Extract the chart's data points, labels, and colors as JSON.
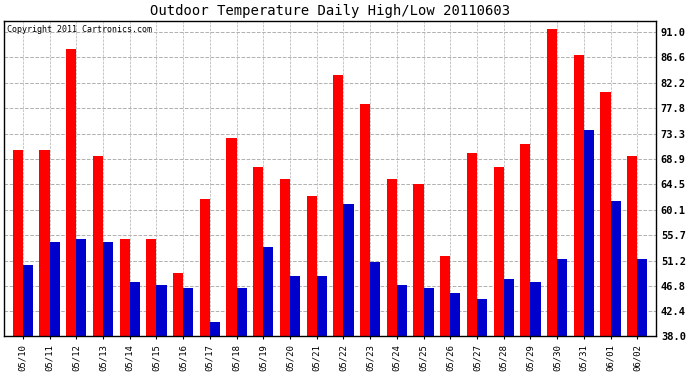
{
  "title": "Outdoor Temperature Daily High/Low 20110603",
  "copyright": "Copyright 2011 Cartronics.com",
  "dates": [
    "05/10",
    "05/11",
    "05/12",
    "05/13",
    "05/14",
    "05/15",
    "05/16",
    "05/17",
    "05/18",
    "05/19",
    "05/20",
    "05/21",
    "05/22",
    "05/23",
    "05/24",
    "05/25",
    "05/26",
    "05/27",
    "05/28",
    "05/29",
    "05/30",
    "05/31",
    "06/01",
    "06/02"
  ],
  "highs": [
    70.5,
    70.5,
    88.0,
    69.5,
    55.0,
    55.0,
    49.0,
    62.0,
    72.5,
    67.5,
    65.5,
    62.5,
    83.5,
    78.5,
    65.5,
    64.5,
    52.0,
    70.0,
    67.5,
    71.5,
    91.5,
    87.0,
    80.5,
    69.5
  ],
  "lows": [
    50.5,
    54.5,
    55.0,
    54.5,
    47.5,
    47.0,
    46.5,
    40.5,
    46.5,
    53.5,
    48.5,
    48.5,
    61.0,
    51.0,
    47.0,
    46.5,
    45.5,
    44.5,
    48.0,
    47.5,
    51.5,
    74.0,
    61.5,
    51.5
  ],
  "high_color": "#FF0000",
  "low_color": "#0000CC",
  "bg_color": "#FFFFFF",
  "grid_color": "#B0B0B0",
  "yticks": [
    38.0,
    42.4,
    46.8,
    51.2,
    55.7,
    60.1,
    64.5,
    68.9,
    73.3,
    77.8,
    82.2,
    86.6,
    91.0
  ],
  "ymin": 38.0,
  "ymax": 93.0
}
